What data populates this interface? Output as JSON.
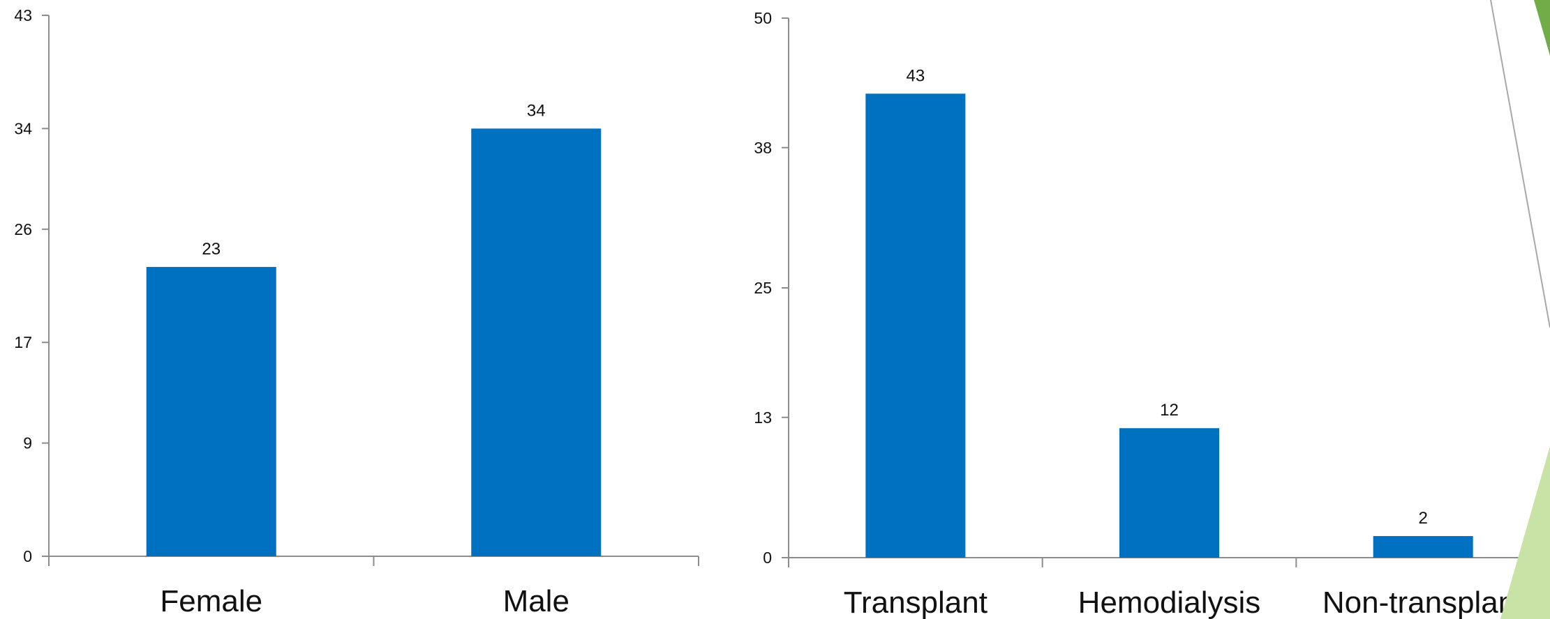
{
  "chart_data": [
    {
      "type": "bar",
      "categories": [
        "Female",
        "Male"
      ],
      "values": [
        23,
        34
      ],
      "ylim": [
        0,
        43
      ],
      "yticks": [
        0,
        9,
        17,
        26,
        34,
        43
      ],
      "title": "",
      "xlabel": "",
      "ylabel": "",
      "grid": false,
      "bar_color": "#0070C0"
    },
    {
      "type": "bar",
      "categories": [
        "Transplant",
        "Hemodialysis",
        "Non-transplant"
      ],
      "values": [
        43,
        12,
        2
      ],
      "ylim": [
        0,
        50
      ],
      "yticks": [
        0,
        13,
        25,
        38,
        50
      ],
      "title": "",
      "xlabel": "",
      "ylabel": "",
      "grid": false,
      "bar_color": "#0070C0"
    }
  ],
  "decoration": {
    "accent_dark": "#70AD47",
    "accent_light": "#C9E2A5"
  }
}
